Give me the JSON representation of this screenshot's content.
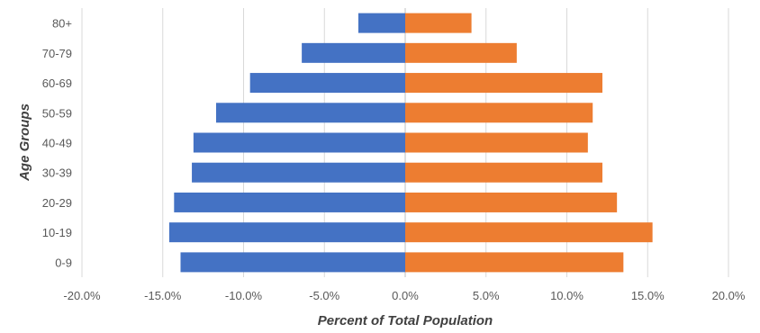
{
  "chart_data": {
    "type": "bar",
    "orientation": "horizontal",
    "layout": "population-pyramid",
    "categories": [
      "80+",
      "70-79",
      "60-69",
      "50-59",
      "40-49",
      "30-39",
      "20-29",
      "10-19",
      "0-9"
    ],
    "series": [
      {
        "color": "#4472C4",
        "values": [
          -2.9,
          -6.4,
          -9.6,
          -11.7,
          -13.1,
          -13.2,
          -14.3,
          -14.6,
          -13.9
        ]
      },
      {
        "color": "#ED7D31",
        "values": [
          4.1,
          6.9,
          12.2,
          11.6,
          11.3,
          12.2,
          13.1,
          15.3,
          13.5
        ]
      }
    ],
    "xlim": [
      -20,
      20
    ],
    "x_ticks": [
      "-20.0%",
      "-15.0%",
      "-10.0%",
      "-5.0%",
      "0.0%",
      "5.0%",
      "10.0%",
      "15.0%",
      "20.0%"
    ],
    "x_tick_values": [
      -20,
      -15,
      -10,
      -5,
      0,
      5,
      10,
      15,
      20
    ],
    "xlabel": "Percent of Total Population",
    "ylabel": "Age Groups",
    "grid": "vertical",
    "legend": "none"
  }
}
